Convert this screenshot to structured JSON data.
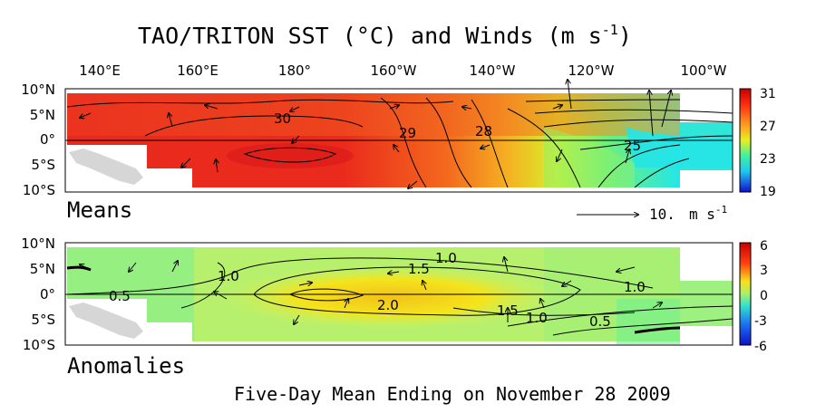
{
  "title": "TAO/TRITON SST (°C) and Winds (m s",
  "title_sup": "-1",
  "title_close": ")",
  "lon_labels": [
    "140°E",
    "160°E",
    "180°",
    "160°W",
    "140°W",
    "120°W",
    "100°W"
  ],
  "lat_labels": [
    "10°N",
    "5°N",
    "0°",
    "5°S",
    "10°S"
  ],
  "panels": {
    "means": {
      "label": "Means",
      "colorbar_ticks": [
        "31",
        "27",
        "23",
        "19"
      ],
      "contour_labels": [
        "30",
        "29",
        "28",
        "25"
      ]
    },
    "anomalies": {
      "label": "Anomalies",
      "colorbar_ticks": [
        "6",
        "3",
        "0",
        "-3",
        "-6"
      ],
      "contour_labels": [
        "1.0",
        "1.5",
        "1.0",
        "0.5",
        "2.0",
        "1.5",
        "1.0",
        "0.5",
        "1.0"
      ]
    }
  },
  "wind_scale": {
    "value": "10.",
    "unit": "m s",
    "unit_sup": "-1"
  },
  "footer": "Five-Day Mean Ending on November 28 2009",
  "colors": {
    "mean_warm": "#e8201c",
    "mean_mid": "#f5a623",
    "mean_cool": "#2de6d8",
    "anom_base": "#b6f06a",
    "anom_high": "#f3e21a",
    "land": "#d8d8d8"
  }
}
